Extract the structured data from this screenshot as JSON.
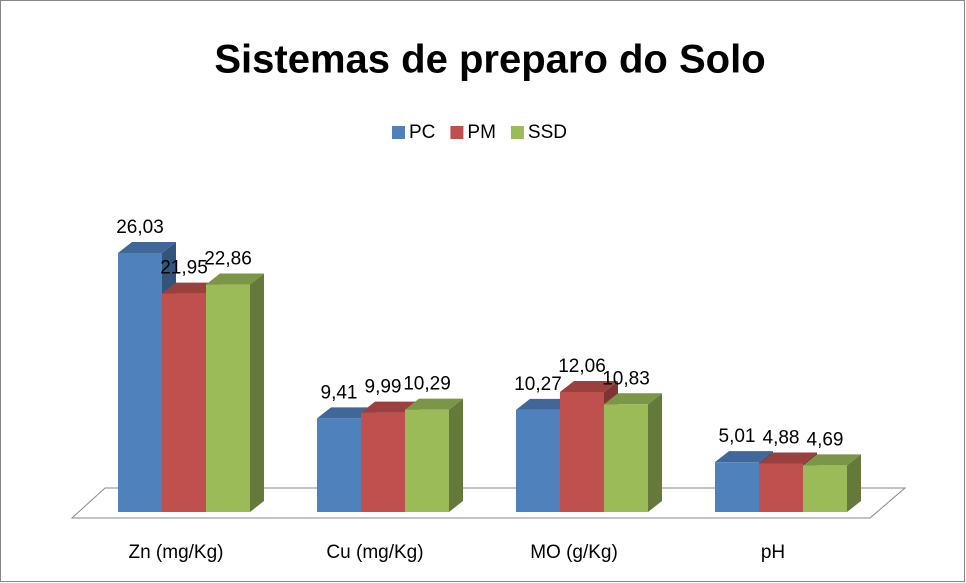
{
  "chart_data": {
    "type": "bar3d",
    "title": "Sistemas de preparo do Solo",
    "categories": [
      "Zn (mg/Kg)",
      "Cu (mg/Kg)",
      "MO (g/Kg)",
      "pH"
    ],
    "legend": "top",
    "series": [
      {
        "name": "PC",
        "color": "#4f81bd",
        "values": [
          26.03,
          9.41,
          10.27,
          5.01
        ],
        "value_labels": [
          "26,03",
          "9,41",
          "10,27",
          "5,01"
        ]
      },
      {
        "name": "PM",
        "color": "#c0504d",
        "values": [
          21.95,
          9.99,
          12.06,
          4.88
        ],
        "value_labels": [
          "21,95",
          "9,99",
          "12,06",
          "4,88"
        ]
      },
      {
        "name": "SSD",
        "color": "#9bbb59",
        "values": [
          22.86,
          10.29,
          10.83,
          4.69
        ],
        "value_labels": [
          "22,86",
          "10,29",
          "10,83",
          "4,69"
        ]
      }
    ]
  }
}
